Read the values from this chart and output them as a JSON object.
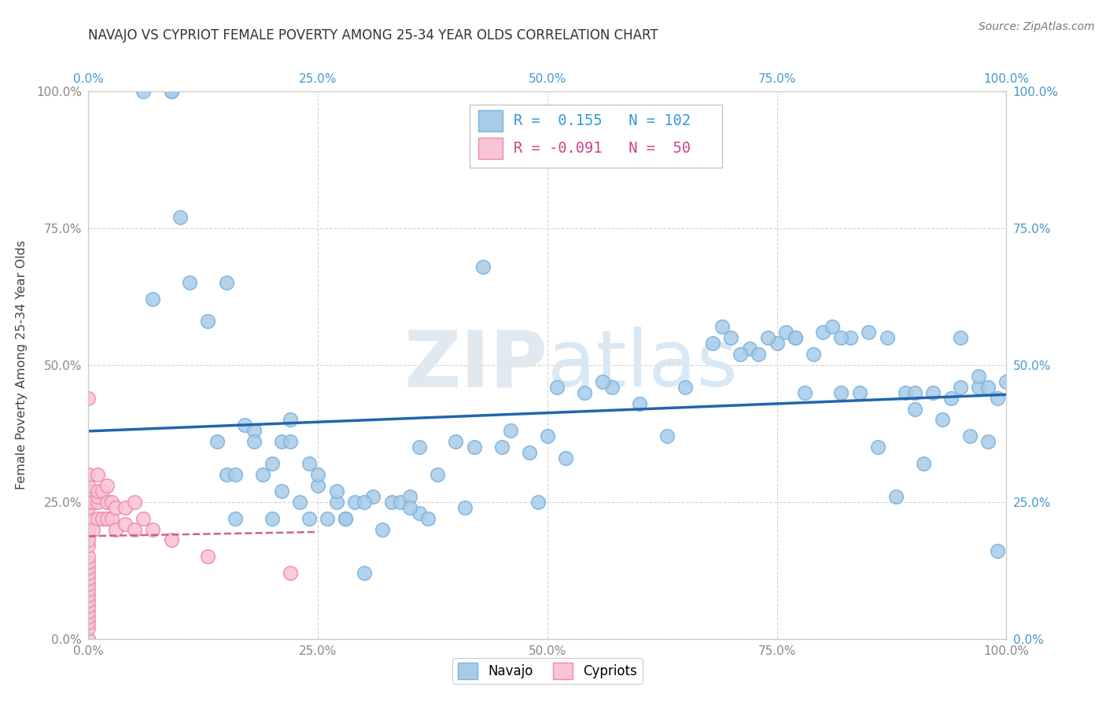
{
  "title": "NAVAJO VS CYPRIOT FEMALE POVERTY AMONG 25-34 YEAR OLDS CORRELATION CHART",
  "source": "Source: ZipAtlas.com",
  "ylabel": "Female Poverty Among 25-34 Year Olds",
  "xlim": [
    0,
    1.0
  ],
  "ylim": [
    0,
    1.0
  ],
  "xticks": [
    0.0,
    0.25,
    0.5,
    0.75,
    1.0
  ],
  "yticks": [
    0.0,
    0.25,
    0.5,
    0.75,
    1.0
  ],
  "xticklabels": [
    "0.0%",
    "25.0%",
    "50.0%",
    "75.0%",
    "100.0%"
  ],
  "yticklabels": [
    "0.0%",
    "25.0%",
    "50.0%",
    "75.0%",
    "100.0%"
  ],
  "navajo_R": 0.155,
  "navajo_N": 102,
  "cypriot_R": -0.091,
  "cypriot_N": 50,
  "navajo_color": "#a8cce8",
  "navajo_edge_color": "#7ab3e0",
  "cypriot_color": "#f9c4d4",
  "cypriot_edge_color": "#f08aaa",
  "navajo_line_color": "#2166ac",
  "cypriot_line_color": "#c8547a",
  "watermark_color": "#e0e8f0",
  "background_color": "#ffffff",
  "grid_color": "#cccccc",
  "left_tick_color": "#888888",
  "right_tick_color": "#4499cc",
  "navajo_x": [
    0.06,
    0.09,
    0.09,
    0.11,
    0.13,
    0.14,
    0.15,
    0.16,
    0.17,
    0.18,
    0.19,
    0.2,
    0.21,
    0.22,
    0.23,
    0.24,
    0.25,
    0.26,
    0.27,
    0.28,
    0.29,
    0.3,
    0.31,
    0.32,
    0.33,
    0.34,
    0.35,
    0.36,
    0.37,
    0.38,
    0.4,
    0.41,
    0.43,
    0.45,
    0.48,
    0.5,
    0.52,
    0.54,
    0.57,
    0.6,
    0.63,
    0.65,
    0.68,
    0.7,
    0.72,
    0.73,
    0.75,
    0.76,
    0.77,
    0.78,
    0.79,
    0.8,
    0.81,
    0.82,
    0.83,
    0.84,
    0.85,
    0.86,
    0.87,
    0.88,
    0.89,
    0.9,
    0.91,
    0.92,
    0.93,
    0.94,
    0.95,
    0.96,
    0.97,
    0.98,
    0.99,
    1.0,
    0.07,
    0.1,
    0.15,
    0.16,
    0.18,
    0.2,
    0.21,
    0.22,
    0.24,
    0.25,
    0.27,
    0.28,
    0.3,
    0.35,
    0.36,
    0.42,
    0.46,
    0.49,
    0.51,
    0.56,
    0.69,
    0.71,
    0.74,
    0.77,
    0.82,
    0.9,
    0.95,
    0.97,
    0.98,
    0.99
  ],
  "navajo_y": [
    1.0,
    1.0,
    1.0,
    0.65,
    0.58,
    0.36,
    0.3,
    0.22,
    0.39,
    0.38,
    0.3,
    0.32,
    0.36,
    0.4,
    0.25,
    0.32,
    0.28,
    0.22,
    0.25,
    0.22,
    0.25,
    0.12,
    0.26,
    0.2,
    0.25,
    0.25,
    0.26,
    0.23,
    0.22,
    0.3,
    0.36,
    0.24,
    0.68,
    0.35,
    0.34,
    0.37,
    0.33,
    0.45,
    0.46,
    0.43,
    0.37,
    0.46,
    0.54,
    0.55,
    0.53,
    0.52,
    0.54,
    0.56,
    0.55,
    0.45,
    0.52,
    0.56,
    0.57,
    0.45,
    0.55,
    0.45,
    0.56,
    0.35,
    0.55,
    0.26,
    0.45,
    0.45,
    0.32,
    0.45,
    0.4,
    0.44,
    0.46,
    0.37,
    0.46,
    0.46,
    0.44,
    0.47,
    0.62,
    0.77,
    0.65,
    0.3,
    0.36,
    0.22,
    0.27,
    0.36,
    0.22,
    0.3,
    0.27,
    0.22,
    0.25,
    0.24,
    0.35,
    0.35,
    0.38,
    0.25,
    0.46,
    0.47,
    0.57,
    0.52,
    0.55,
    0.55,
    0.55,
    0.42,
    0.55,
    0.48,
    0.36,
    0.16
  ],
  "cypriot_x": [
    0.0,
    0.0,
    0.0,
    0.0,
    0.0,
    0.0,
    0.0,
    0.0,
    0.0,
    0.0,
    0.0,
    0.0,
    0.0,
    0.0,
    0.0,
    0.0,
    0.0,
    0.0,
    0.0,
    0.0,
    0.0,
    0.0,
    0.0,
    0.0,
    0.0,
    0.005,
    0.005,
    0.01,
    0.01,
    0.01,
    0.01,
    0.01,
    0.015,
    0.015,
    0.02,
    0.02,
    0.02,
    0.025,
    0.025,
    0.03,
    0.03,
    0.04,
    0.04,
    0.05,
    0.05,
    0.06,
    0.07,
    0.09,
    0.13,
    0.22
  ],
  "cypriot_y": [
    0.0,
    0.02,
    0.03,
    0.04,
    0.05,
    0.06,
    0.07,
    0.08,
    0.09,
    0.1,
    0.11,
    0.12,
    0.13,
    0.14,
    0.15,
    0.17,
    0.18,
    0.2,
    0.22,
    0.24,
    0.25,
    0.27,
    0.28,
    0.3,
    0.44,
    0.2,
    0.25,
    0.22,
    0.25,
    0.26,
    0.27,
    0.3,
    0.22,
    0.27,
    0.22,
    0.25,
    0.28,
    0.22,
    0.25,
    0.2,
    0.24,
    0.21,
    0.24,
    0.2,
    0.25,
    0.22,
    0.2,
    0.18,
    0.15,
    0.12
  ]
}
